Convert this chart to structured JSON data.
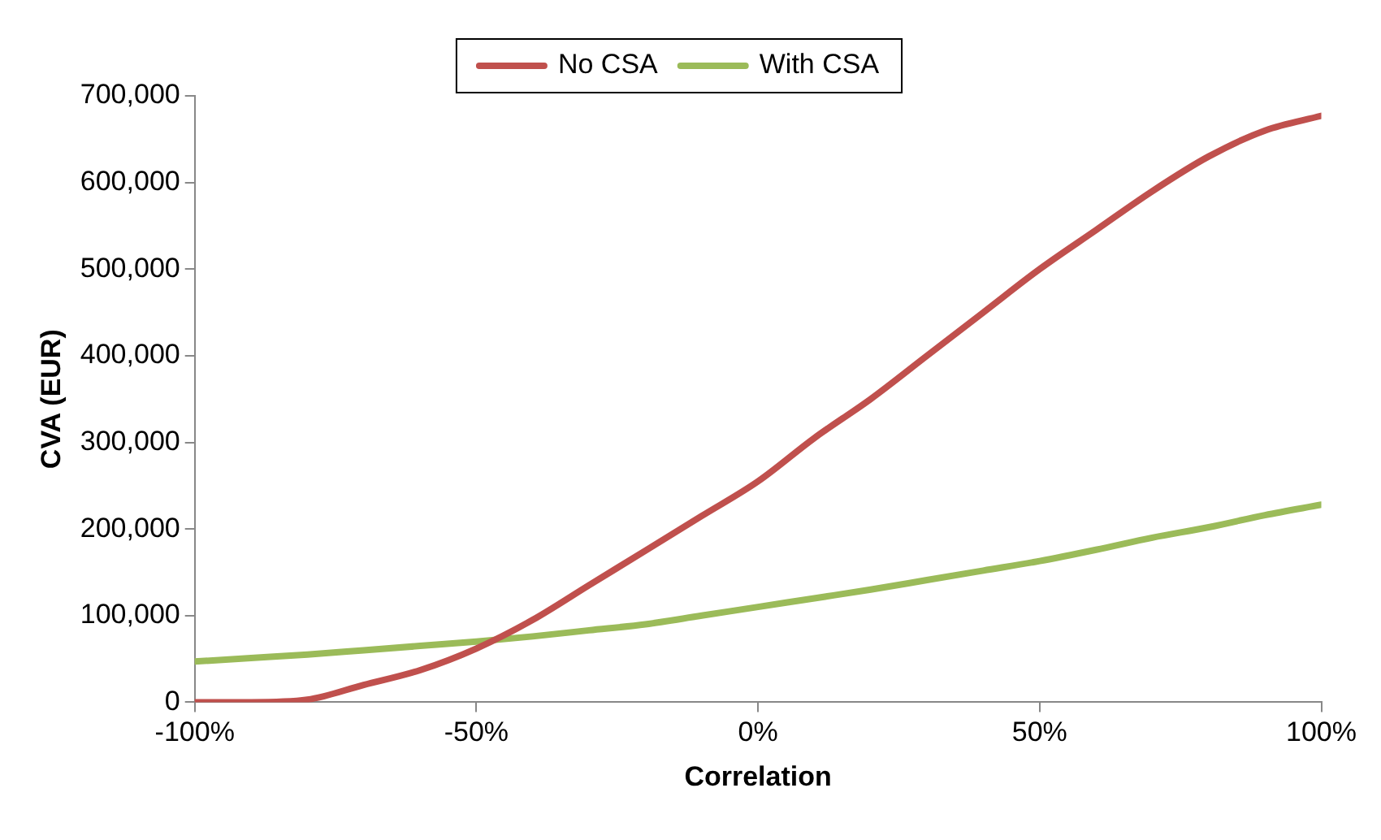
{
  "chart_data": {
    "type": "line",
    "xlabel": "Correlation",
    "ylabel": "CVA (EUR)",
    "x": [
      -100,
      -90,
      -80,
      -70,
      -60,
      -50,
      -40,
      -30,
      -20,
      -10,
      0,
      10,
      20,
      30,
      40,
      50,
      60,
      70,
      80,
      90,
      100
    ],
    "series": [
      {
        "name": "No CSA",
        "color": "#c0504d",
        "values": [
          0,
          0,
          3000,
          20000,
          37000,
          62000,
          95000,
          135000,
          175000,
          215000,
          255000,
          305000,
          350000,
          400000,
          450000,
          500000,
          545000,
          590000,
          630000,
          660000,
          677000
        ]
      },
      {
        "name": "With CSA",
        "color": "#9bbb59",
        "values": [
          47000,
          51000,
          55000,
          60000,
          65000,
          70000,
          76000,
          83000,
          90000,
          100000,
          110000,
          120000,
          130000,
          141000,
          152000,
          163000,
          176000,
          190000,
          202000,
          216000,
          228000
        ]
      }
    ],
    "xlim": [
      -100,
      100
    ],
    "xticks": [
      {
        "value": -100,
        "label": "-100%"
      },
      {
        "value": -50,
        "label": "-50%"
      },
      {
        "value": 0,
        "label": "0%"
      },
      {
        "value": 50,
        "label": "50%"
      },
      {
        "value": 100,
        "label": "100%"
      }
    ],
    "ylim": [
      0,
      700000
    ],
    "yticks": [
      {
        "value": 0,
        "label": "0"
      },
      {
        "value": 100000,
        "label": "100,000"
      },
      {
        "value": 200000,
        "label": "200,000"
      },
      {
        "value": 300000,
        "label": "300,000"
      },
      {
        "value": 400000,
        "label": "400,000"
      },
      {
        "value": 500000,
        "label": "500,000"
      },
      {
        "value": 600000,
        "label": "600,000"
      },
      {
        "value": 700000,
        "label": "700,000"
      }
    ],
    "grid": false,
    "legend": "top",
    "marker": "none",
    "line_style": "solid"
  }
}
